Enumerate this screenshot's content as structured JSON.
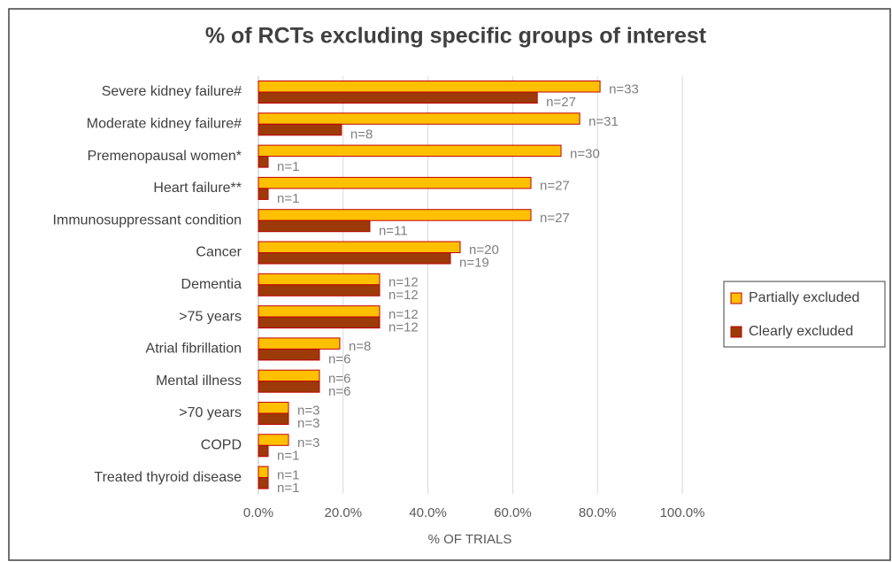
{
  "chart_data": {
    "type": "bar",
    "orientation": "horizontal",
    "title": "% of RCTs excluding specific groups of interest",
    "x_label": "% OF TRIALS",
    "categories": [
      "Severe kidney failure#",
      "Moderate kidney failure#",
      "Premenopausal women*",
      "Heart failure**",
      "Immunosuppressant condition",
      "Cancer",
      "Dementia",
      ">75 years",
      "Atrial fibrillation",
      "Mental illness",
      ">70 years",
      "COPD",
      "Treated thyroid disease"
    ],
    "series": [
      {
        "name": "Partially excluded",
        "color": "#ffc000",
        "edge": "#c00000",
        "values": [
          80.6,
          75.8,
          71.4,
          64.3,
          64.3,
          47.6,
          28.6,
          28.6,
          19.2,
          14.4,
          7.1,
          7.1,
          2.3
        ],
        "annotations": [
          "n=33",
          "n=31",
          "n=30",
          "n=27",
          "n=27",
          "n=20",
          "n=12",
          "n=12",
          "n=8",
          "n=6",
          "n=3",
          "n=3",
          "n=1"
        ]
      },
      {
        "name": "Clearly excluded",
        "color": "#9c3a0a",
        "edge": "#c00000",
        "values": [
          65.8,
          19.6,
          2.3,
          2.3,
          26.3,
          45.3,
          28.6,
          28.6,
          14.4,
          14.4,
          7.1,
          2.3,
          2.3
        ],
        "annotations": [
          "n=27",
          "n=8",
          "n=1",
          "n=1",
          "n=11",
          "n=19",
          "n=12",
          "n=12",
          "n=6",
          "n=6",
          "n=3",
          "n=1",
          "n=1"
        ]
      }
    ],
    "xlim": [
      0,
      100
    ],
    "xticks": [
      {
        "value": 0,
        "label": "0.0%"
      },
      {
        "value": 20,
        "label": "20.0%"
      },
      {
        "value": 40,
        "label": "40.0%"
      },
      {
        "value": 60,
        "label": "60.0%"
      },
      {
        "value": 80,
        "label": "80.0%"
      },
      {
        "value": 100,
        "label": "100.0%"
      }
    ],
    "grid": true,
    "legend": "right"
  }
}
